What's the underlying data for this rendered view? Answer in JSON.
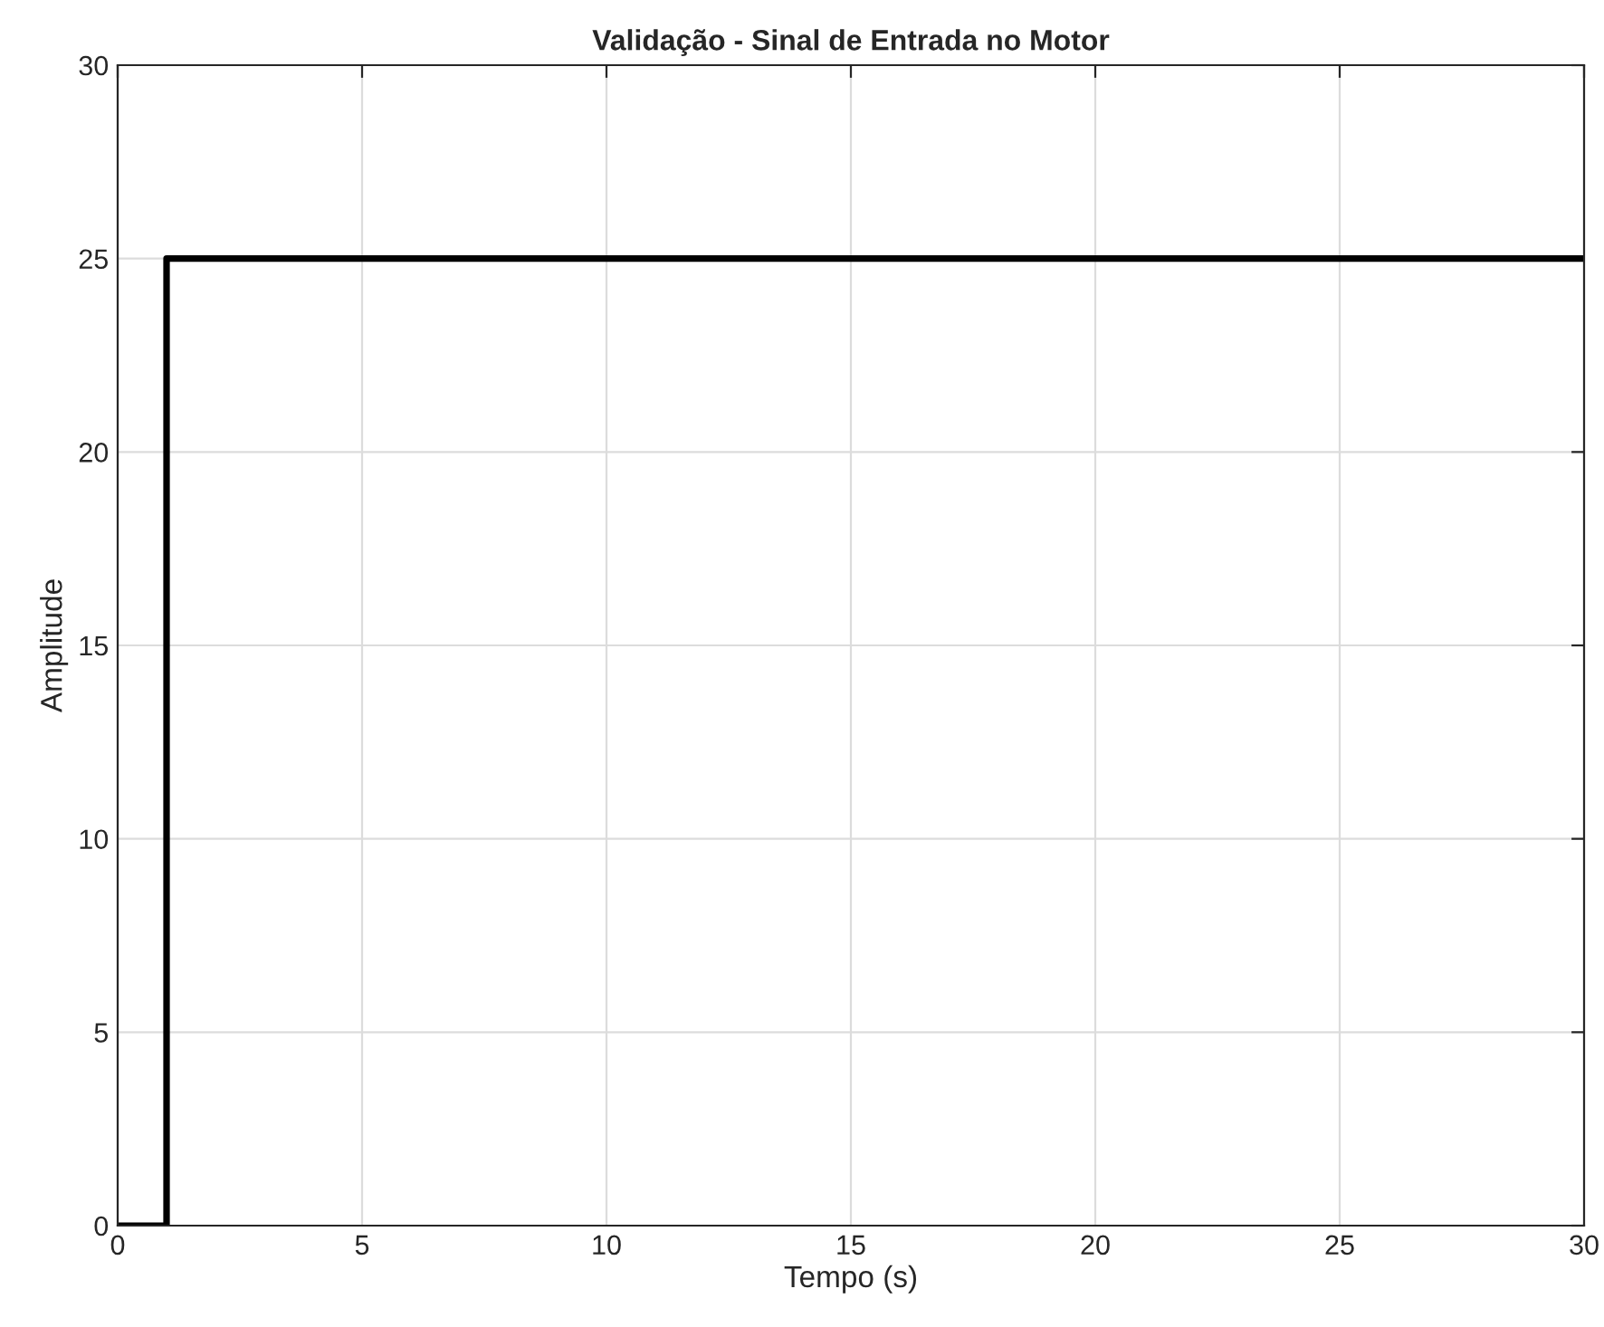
{
  "chart_data": {
    "type": "step",
    "title": "Validação - Sinal de Entrada no Motor",
    "xlabel": "Tempo (s)",
    "ylabel": "Amplitude",
    "x": [
      0,
      1,
      30
    ],
    "series": [
      {
        "color": "#000000",
        "values": [
          0,
          25,
          25
        ]
      }
    ],
    "xlim": [
      0,
      30
    ],
    "ylim": [
      0,
      30
    ],
    "xticks": [
      0,
      5,
      10,
      15,
      20,
      25,
      30
    ],
    "yticks": [
      0,
      5,
      10,
      15,
      20,
      25,
      30
    ],
    "grid": true,
    "line_style": "solid",
    "marker": "none"
  }
}
